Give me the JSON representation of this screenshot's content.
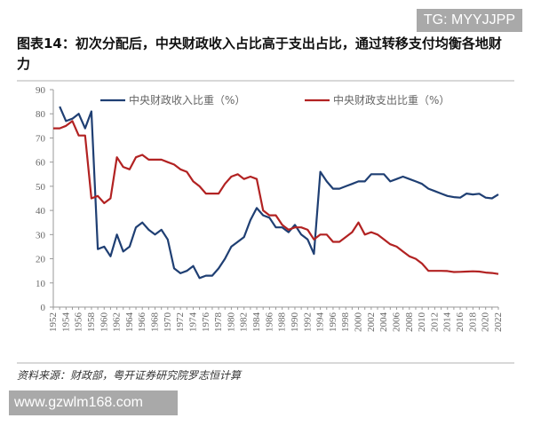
{
  "watermarks": {
    "top": "TG: MYYJJPP",
    "bottom": "www.gzwlm168.com"
  },
  "title": "图表14：初次分配后，中央财政收入占比高于支出占比，通过转移支付均衡各地财力",
  "source": "资料来源：财政部，粤开证券研究院罗志恒计算",
  "chart_data": {
    "type": "line",
    "ylim": [
      0,
      90
    ],
    "yticks": [
      0,
      10,
      20,
      30,
      40,
      50,
      60,
      70,
      80,
      90
    ],
    "xlim": [
      1952,
      2022
    ],
    "xticks": [
      1952,
      1954,
      1956,
      1958,
      1960,
      1962,
      1964,
      1966,
      1968,
      1970,
      1972,
      1974,
      1976,
      1978,
      1980,
      1982,
      1984,
      1986,
      1988,
      1990,
      1992,
      1994,
      1996,
      1998,
      2000,
      2002,
      2004,
      2006,
      2008,
      2010,
      2012,
      2014,
      2016,
      2018,
      2020,
      2022
    ],
    "grid": false,
    "legend_placement": "top",
    "series": [
      {
        "name": "中央财政收入比重（%）",
        "color": "#1f3f73",
        "start_year": 1953,
        "values": [
          83,
          77,
          78,
          80,
          74,
          81,
          24,
          25,
          21,
          30,
          23,
          25,
          33,
          35,
          32,
          30,
          32,
          28,
          16,
          14,
          15,
          17,
          12,
          13,
          13,
          16,
          20,
          25,
          27,
          29,
          36,
          41,
          38,
          37,
          33,
          33,
          31,
          34,
          30,
          28,
          22,
          56,
          52,
          49,
          49,
          50,
          51,
          52,
          52,
          55,
          55,
          55,
          52,
          53,
          54,
          53,
          52,
          51,
          49,
          48,
          47,
          46,
          45.5,
          45.3,
          47,
          46.6,
          46.9,
          45.3,
          45,
          46.6
        ]
      },
      {
        "name": "中央财政支出比重（%）",
        "color": "#b22222",
        "start_year": 1952,
        "values": [
          74,
          74,
          75,
          77,
          71,
          71,
          45,
          46,
          43,
          45,
          62,
          58,
          57,
          62,
          63,
          61,
          61,
          61,
          60,
          59,
          57,
          56,
          52,
          50,
          47,
          47,
          47,
          51,
          54,
          55,
          53,
          54,
          53,
          40,
          38,
          38,
          34,
          32,
          33,
          33,
          32,
          28,
          30,
          30,
          27,
          27,
          29,
          31,
          35,
          30,
          31,
          30,
          28,
          26,
          25,
          23,
          21,
          20,
          18,
          15,
          15,
          15,
          14.9,
          14.5,
          14.6,
          14.7,
          14.8,
          14.7,
          14.3,
          14.1,
          13.7
        ]
      }
    ]
  }
}
